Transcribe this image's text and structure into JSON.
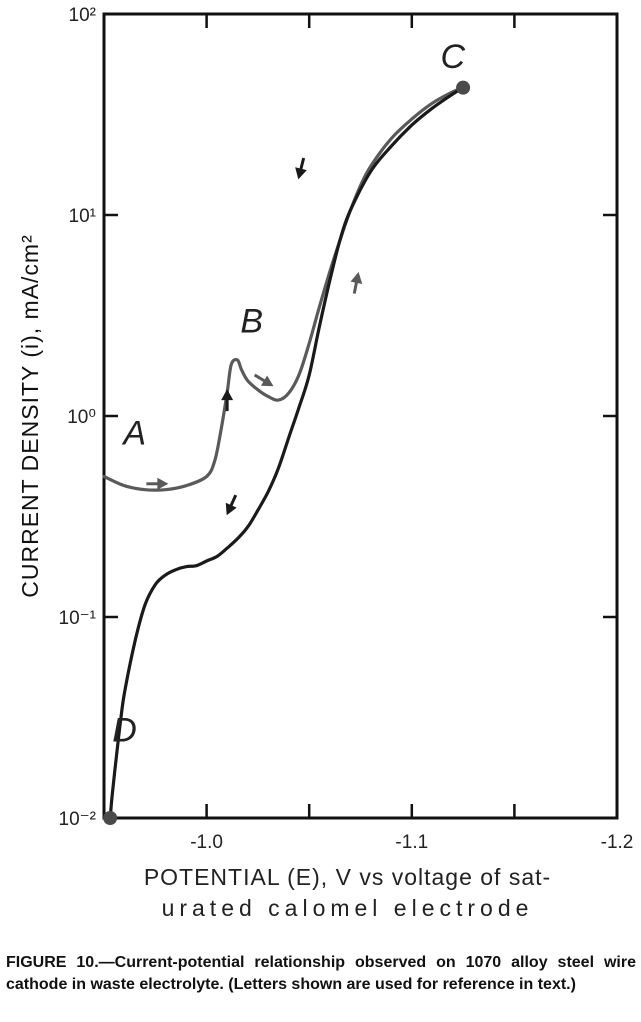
{
  "chart_data": {
    "type": "line",
    "title": "",
    "xlabel_line1": "POTENTIAL (E), V vs voltage of sat-",
    "xlabel_line2": "urated calomel electrode",
    "ylabel": "CURRENT DENSITY (i), mA/cm²",
    "y_scale": "log",
    "x_ticks": [
      "-1.0",
      "-1.1",
      "-1.2"
    ],
    "y_ticks": [
      "10⁻²",
      "10⁻¹",
      "10⁰",
      "10¹",
      "10²"
    ],
    "xlim": [
      -0.95,
      -1.2
    ],
    "ylim": [
      0.01,
      100
    ],
    "grid": false,
    "series": [
      {
        "color": "#5a5a5a",
        "x": [
          -0.95,
          -0.96,
          -0.97,
          -0.98,
          -0.99,
          -1.0,
          -1.004,
          -1.007,
          -1.01,
          -1.012,
          -1.015,
          -1.017,
          -1.02,
          -1.025,
          -1.03,
          -1.035,
          -1.04,
          -1.045,
          -1.05,
          -1.055,
          -1.06,
          -1.065,
          -1.07,
          -1.075,
          -1.08,
          -1.09,
          -1.1,
          -1.11,
          -1.12,
          -1.125
        ],
        "y": [
          0.5,
          0.45,
          0.43,
          0.43,
          0.45,
          0.5,
          0.6,
          0.85,
          1.3,
          1.8,
          1.9,
          1.7,
          1.5,
          1.35,
          1.25,
          1.2,
          1.3,
          1.6,
          2.3,
          3.5,
          5.2,
          7.5,
          10.5,
          14,
          17.5,
          24,
          30,
          36,
          41,
          43
        ]
      },
      {
        "color": "#1a1a1a",
        "x": [
          -1.125,
          -1.12,
          -1.11,
          -1.1,
          -1.09,
          -1.08,
          -1.07,
          -1.065,
          -1.06,
          -1.055,
          -1.05,
          -1.045,
          -1.04,
          -1.035,
          -1.03,
          -1.025,
          -1.02,
          -1.015,
          -1.01,
          -1.005,
          -1.0,
          -0.995,
          -0.99,
          -0.985,
          -0.98,
          -0.975,
          -0.97,
          -0.965,
          -0.96,
          -0.958,
          -0.956,
          -0.954,
          -0.953
        ],
        "y": [
          43,
          40,
          34,
          28,
          22,
          16.5,
          10.5,
          7.5,
          4.7,
          2.8,
          1.6,
          1.1,
          0.78,
          0.55,
          0.42,
          0.34,
          0.28,
          0.245,
          0.22,
          0.2,
          0.19,
          0.18,
          0.178,
          0.172,
          0.162,
          0.145,
          0.115,
          0.075,
          0.042,
          0.03,
          0.02,
          0.013,
          0.01
        ]
      }
    ],
    "point_labels": [
      {
        "text": "A",
        "x": -0.965,
        "y": 0.72
      },
      {
        "text": "B",
        "x": -1.022,
        "y": 2.6
      },
      {
        "text": "C",
        "x": -1.12,
        "y": 54
      },
      {
        "text": "D",
        "x": -0.96,
        "y": 0.024
      }
    ],
    "markers": [
      {
        "x": -1.125,
        "y": 43
      },
      {
        "x": -0.953,
        "y": 0.01
      }
    ],
    "arrows": [
      {
        "x": -0.976,
        "y": 0.46,
        "dx": 1,
        "dy": 0,
        "color": "#5a5a5a"
      },
      {
        "x": -1.01,
        "y": 1.2,
        "dx": 0,
        "dy": -1,
        "color": "#1a1a1a"
      },
      {
        "x": -1.028,
        "y": 1.5,
        "dx": 1,
        "dy": 0.6,
        "color": "#5a5a5a"
      },
      {
        "x": -1.073,
        "y": 4.6,
        "dx": 0.2,
        "dy": -1,
        "color": "#5a5a5a"
      },
      {
        "x": -1.046,
        "y": 17,
        "dx": -0.25,
        "dy": 1,
        "color": "#1a1a1a"
      },
      {
        "x": -1.012,
        "y": 0.36,
        "dx": -0.45,
        "dy": 1,
        "color": "#1a1a1a"
      }
    ]
  },
  "caption": "FIGURE 10.—Current-potential relationship observed on 1070 alloy steel wire cathode in waste electrolyte. (Letters shown are used for reference in text.)"
}
